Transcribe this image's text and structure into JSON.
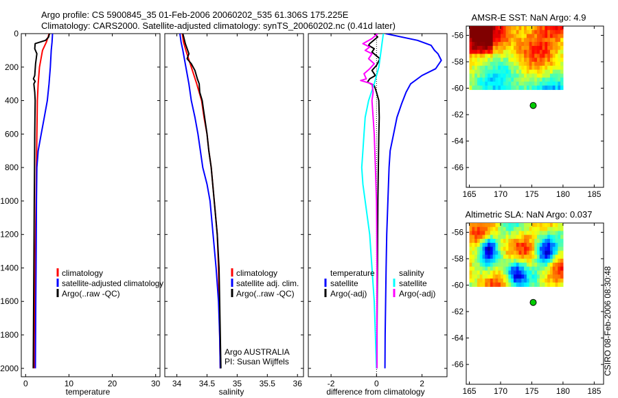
{
  "header": {
    "line1": "Argo profile: CS 5900845_35 01-Feb-2006 20060202_535 61.306S 175.225E",
    "line2": "Climatology: CARS2000. Satellite-adjusted climatology: synTS_20060202.nc (0.41d later)"
  },
  "footer": {
    "stamp": "CSIRO 08-Feb-2006 08:30:48"
  },
  "colors": {
    "climatology": "#ff0000",
    "satellite": "#0000ff",
    "argo": "#000000",
    "sal_satellite": "#00ffff",
    "sal_argo": "#ff00ff",
    "marker": "#00cc00"
  },
  "chart_data": [
    {
      "type": "line",
      "xlabel": "temperature",
      "xlim": [
        -1,
        31
      ],
      "ylim": [
        0,
        2050
      ],
      "xticks": [
        0,
        10,
        20,
        30
      ],
      "yticks": [
        0,
        200,
        400,
        600,
        800,
        1000,
        1200,
        1400,
        1600,
        1800,
        2000
      ],
      "y_reversed": true,
      "legend": [
        "climatology",
        "satellite-adjusted climatology",
        "Argo(..raw -QC)"
      ],
      "series": [
        {
          "name": "climatology",
          "color": "#ff0000",
          "points": [
            [
              5.4,
              0
            ],
            [
              5.2,
              20
            ],
            [
              4.8,
              50
            ],
            [
              3.9,
              100
            ],
            [
              3.2,
              200
            ],
            [
              2.9,
              300
            ],
            [
              2.7,
              400
            ],
            [
              2.6,
              600
            ],
            [
              2.5,
              800
            ],
            [
              2.4,
              1000
            ],
            [
              2.3,
              1200
            ],
            [
              2.2,
              1400
            ],
            [
              2.1,
              1600
            ],
            [
              2.0,
              1800
            ],
            [
              1.95,
              2000
            ]
          ]
        },
        {
          "name": "satellite-adjusted climatology",
          "color": "#0000ff",
          "points": [
            [
              6.2,
              0
            ],
            [
              6.1,
              50
            ],
            [
              5.9,
              100
            ],
            [
              5.7,
              200
            ],
            [
              5.4,
              300
            ],
            [
              5.0,
              400
            ],
            [
              4.3,
              500
            ],
            [
              3.6,
              600
            ],
            [
              2.9,
              700
            ],
            [
              2.6,
              800
            ],
            [
              2.5,
              1000
            ],
            [
              2.45,
              1200
            ],
            [
              2.4,
              1400
            ],
            [
              2.35,
              1600
            ],
            [
              2.3,
              1800
            ],
            [
              2.25,
              2000
            ]
          ]
        },
        {
          "name": "Argo(..raw -QC)",
          "color": "#000000",
          "points": [
            [
              5.5,
              0
            ],
            [
              5.3,
              20
            ],
            [
              4.6,
              40
            ],
            [
              2.2,
              60
            ],
            [
              2.1,
              90
            ],
            [
              2.6,
              120
            ],
            [
              2.3,
              180
            ],
            [
              2.1,
              250
            ],
            [
              1.8,
              270
            ],
            [
              2.2,
              285
            ],
            [
              1.9,
              300
            ],
            [
              2.1,
              350
            ],
            [
              2.2,
              400
            ],
            [
              2.1,
              600
            ],
            [
              2.05,
              800
            ],
            [
              2.0,
              1000
            ],
            [
              1.95,
              1200
            ],
            [
              1.9,
              1400
            ],
            [
              1.85,
              1600
            ],
            [
              1.8,
              1800
            ],
            [
              1.75,
              2000
            ]
          ]
        }
      ]
    },
    {
      "type": "line",
      "xlabel": "salinity",
      "xlim": [
        33.8,
        36.1
      ],
      "ylim": [
        0,
        2050
      ],
      "xticks": [
        34,
        34.5,
        35,
        35.5,
        36
      ],
      "y_reversed": true,
      "legend": [
        "climatology",
        "satellite adj. clim.",
        "Argo(..raw -QC)"
      ],
      "annotations": [
        "Argo AUSTRALIA",
        "PI: Susan Wijffels"
      ],
      "series": [
        {
          "name": "climatology",
          "color": "#ff0000",
          "points": [
            [
              34.09,
              0
            ],
            [
              34.11,
              50
            ],
            [
              34.15,
              100
            ],
            [
              34.24,
              200
            ],
            [
              34.33,
              300
            ],
            [
              34.41,
              400
            ],
            [
              34.45,
              500
            ],
            [
              34.5,
              600
            ],
            [
              34.53,
              700
            ],
            [
              34.57,
              800
            ],
            [
              34.62,
              1000
            ],
            [
              34.67,
              1200
            ],
            [
              34.69,
              1400
            ],
            [
              34.7,
              1600
            ],
            [
              34.71,
              1800
            ],
            [
              34.72,
              2000
            ]
          ]
        },
        {
          "name": "satellite adj. clim.",
          "color": "#0000ff",
          "points": [
            [
              34.05,
              0
            ],
            [
              34.07,
              50
            ],
            [
              34.1,
              100
            ],
            [
              34.15,
              200
            ],
            [
              34.2,
              300
            ],
            [
              34.24,
              400
            ],
            [
              34.3,
              500
            ],
            [
              34.35,
              600
            ],
            [
              34.39,
              700
            ],
            [
              34.43,
              800
            ],
            [
              34.5,
              900
            ],
            [
              34.55,
              1000
            ],
            [
              34.6,
              1200
            ],
            [
              34.65,
              1400
            ],
            [
              34.69,
              1600
            ],
            [
              34.71,
              1800
            ],
            [
              34.72,
              2000
            ]
          ]
        },
        {
          "name": "Argo(..raw -QC)",
          "color": "#000000",
          "points": [
            [
              34.1,
              0
            ],
            [
              34.12,
              30
            ],
            [
              34.14,
              60
            ],
            [
              34.17,
              90
            ],
            [
              34.2,
              120
            ],
            [
              34.17,
              150
            ],
            [
              34.24,
              180
            ],
            [
              34.3,
              220
            ],
            [
              34.34,
              270
            ],
            [
              34.37,
              300
            ],
            [
              34.38,
              350
            ],
            [
              34.42,
              400
            ],
            [
              34.44,
              450
            ],
            [
              34.46,
              500
            ],
            [
              34.5,
              600
            ],
            [
              34.53,
              700
            ],
            [
              34.57,
              800
            ],
            [
              34.62,
              1000
            ],
            [
              34.67,
              1200
            ],
            [
              34.7,
              1400
            ],
            [
              34.71,
              1600
            ],
            [
              34.72,
              1800
            ],
            [
              34.73,
              2000
            ]
          ]
        }
      ]
    },
    {
      "type": "line",
      "xlabel": "difference from climatology",
      "xlim": [
        -3,
        3.1
      ],
      "ylim": [
        0,
        2050
      ],
      "xticks": [
        -2,
        0,
        2
      ],
      "y_reversed": true,
      "legend_headers": [
        "temperature",
        "salinity"
      ],
      "legend": [
        "satellite",
        "Argo(-adj)",
        "satellite",
        "Argo(-adj)"
      ],
      "series": [
        {
          "name": "temperature satellite",
          "color": "#0000ff",
          "points": [
            [
              0.4,
              0
            ],
            [
              1.8,
              40
            ],
            [
              2.4,
              70
            ],
            [
              2.55,
              100
            ],
            [
              2.7,
              120
            ],
            [
              2.85,
              160
            ],
            [
              2.6,
              210
            ],
            [
              2.0,
              250
            ],
            [
              1.5,
              300
            ],
            [
              1.3,
              350
            ],
            [
              1.1,
              420
            ],
            [
              0.9,
              500
            ],
            [
              0.75,
              600
            ],
            [
              0.6,
              700
            ],
            [
              0.55,
              800
            ],
            [
              0.5,
              1000
            ],
            [
              0.45,
              1200
            ],
            [
              0.42,
              1400
            ],
            [
              0.4,
              1600
            ],
            [
              0.38,
              1800
            ],
            [
              0.37,
              2000
            ]
          ]
        },
        {
          "name": "temperature Argo(-adj)",
          "color": "#000000",
          "points": [
            [
              -0.1,
              0
            ],
            [
              0.05,
              20
            ],
            [
              -0.3,
              60
            ],
            [
              -0.35,
              70
            ],
            [
              -0.1,
              90
            ],
            [
              -0.2,
              110
            ],
            [
              0.15,
              150
            ],
            [
              0.0,
              190
            ],
            [
              -0.2,
              220
            ],
            [
              -0.05,
              250
            ],
            [
              -0.3,
              270
            ],
            [
              -0.4,
              290
            ],
            [
              -0.1,
              310
            ],
            [
              0.0,
              350
            ],
            [
              0.1,
              400
            ],
            [
              0.12,
              500
            ],
            [
              0.1,
              600
            ],
            [
              0.08,
              800
            ],
            [
              0.06,
              1000
            ],
            [
              0.05,
              1200
            ],
            [
              0.04,
              1400
            ],
            [
              0.03,
              1600
            ],
            [
              0.02,
              1800
            ],
            [
              0.02,
              2000
            ]
          ]
        },
        {
          "name": "salinity satellite",
          "color": "#00ffff",
          "points": [
            [
              0.3,
              0
            ],
            [
              0.25,
              50
            ],
            [
              0.2,
              100
            ],
            [
              0.1,
              200
            ],
            [
              -0.1,
              300
            ],
            [
              -0.35,
              400
            ],
            [
              -0.5,
              500
            ],
            [
              -0.55,
              600
            ],
            [
              -0.6,
              700
            ],
            [
              -0.65,
              800
            ],
            [
              -0.6,
              900
            ],
            [
              -0.5,
              1000
            ],
            [
              -0.4,
              1100
            ],
            [
              -0.3,
              1200
            ],
            [
              -0.2,
              1400
            ],
            [
              -0.1,
              1600
            ],
            [
              -0.05,
              1800
            ],
            [
              0.0,
              2000
            ]
          ]
        },
        {
          "name": "salinity Argo(-adj)",
          "color": "#ff00ff",
          "points": [
            [
              0.05,
              0
            ],
            [
              -0.2,
              30
            ],
            [
              -0.6,
              60
            ],
            [
              -0.3,
              80
            ],
            [
              -0.5,
              100
            ],
            [
              -0.2,
              120
            ],
            [
              -0.35,
              150
            ],
            [
              -0.1,
              180
            ],
            [
              -0.3,
              210
            ],
            [
              -0.55,
              240
            ],
            [
              -0.45,
              270
            ],
            [
              -0.7,
              280
            ],
            [
              -0.2,
              300
            ],
            [
              -0.15,
              350
            ],
            [
              -0.2,
              400
            ],
            [
              -0.15,
              500
            ],
            [
              -0.1,
              600
            ],
            [
              -0.05,
              800
            ],
            [
              0.0,
              1000
            ],
            [
              0.01,
              1200
            ],
            [
              0.02,
              1400
            ],
            [
              0.02,
              1600
            ],
            [
              0.02,
              1800
            ],
            [
              0.02,
              2000
            ]
          ]
        }
      ]
    },
    {
      "type": "heatmap",
      "title": "AMSR-E SST: NaN Argo: 4.9",
      "xlim": [
        164.5,
        186.5
      ],
      "ylim": [
        -67.5,
        -55.3
      ],
      "xticks": [
        165,
        170,
        175,
        180,
        185
      ],
      "yticks": [
        -56,
        -58,
        -60,
        -62,
        -64,
        -66
      ],
      "field_extent": {
        "lon": [
          165,
          180
        ],
        "lat": [
          -60.1,
          -55.3
        ]
      },
      "argo_position": {
        "lon": 175.225,
        "lat": -61.306
      }
    },
    {
      "type": "heatmap",
      "title": "Altimetric SLA: NaN Argo: 0.037",
      "xlim": [
        164.5,
        186.5
      ],
      "ylim": [
        -67.5,
        -55.3
      ],
      "xticks": [
        165,
        170,
        175,
        180,
        185
      ],
      "yticks": [
        -56,
        -58,
        -60,
        -62,
        -64,
        -66
      ],
      "field_extent": {
        "lon": [
          165,
          180
        ],
        "lat": [
          -60.1,
          -55.3
        ]
      },
      "argo_position": {
        "lon": 175.225,
        "lat": -61.306
      }
    }
  ]
}
